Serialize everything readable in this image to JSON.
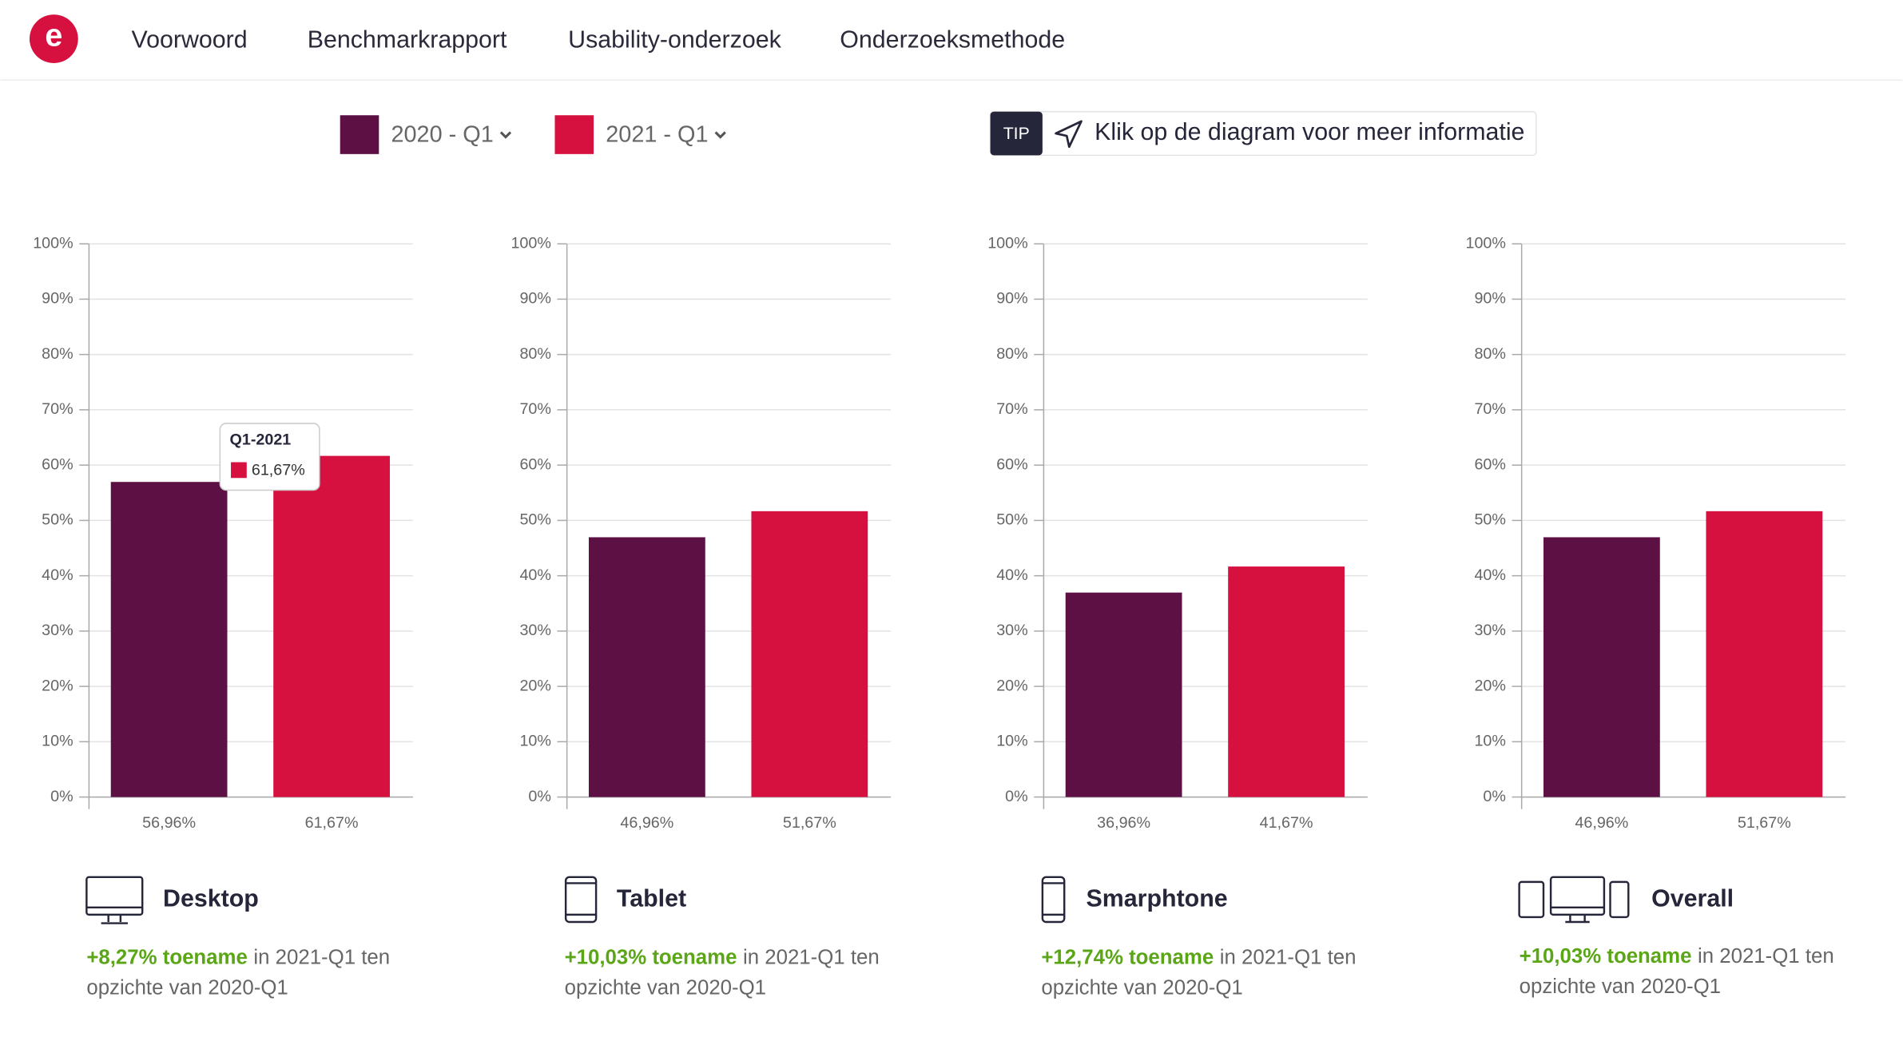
{
  "nav": {
    "items": [
      "Voorwoord",
      "Benchmarkrapport",
      "Usability-onderzoek",
      "Onderzoeksmethode"
    ]
  },
  "legend": [
    {
      "name": "2020 - Q1",
      "color": "#5c1044"
    },
    {
      "name": "2021 - Q1",
      "color": "#d6103f"
    }
  ],
  "tip": {
    "badge": "TIP",
    "text": "Klik op de diagram voor meer informatie"
  },
  "chart_data": [
    {
      "type": "bar",
      "title": "Desktop",
      "values": [
        56.96,
        61.67
      ],
      "value_labels": [
        "56,96%",
        "61,67%"
      ],
      "ylim": [
        0,
        100
      ],
      "yticks": [
        {
          "value": 0,
          "label": "0%"
        },
        {
          "value": 10,
          "label": "10%"
        },
        {
          "value": 20,
          "label": "20%"
        },
        {
          "value": 30,
          "label": "30%"
        },
        {
          "value": 40,
          "label": "40%"
        },
        {
          "value": 50,
          "label": "50%"
        },
        {
          "value": 60,
          "label": "60%"
        },
        {
          "value": 70,
          "label": "70%"
        },
        {
          "value": 80,
          "label": "80%"
        },
        {
          "value": 90,
          "label": "90%"
        },
        {
          "value": 100,
          "label": "100%"
        }
      ],
      "grid": true,
      "change": "+8,27% toename",
      "note": [
        "in 2021-Q1 ten",
        "opzichte van 2020-Q1"
      ],
      "tooltip": {
        "title": "Q1-2021",
        "label": "61,67%"
      }
    },
    {
      "type": "bar",
      "title": "Tablet",
      "values": [
        46.96,
        51.67
      ],
      "value_labels": [
        "46,96%",
        "51,67%"
      ],
      "ylim": [
        0,
        100
      ],
      "yticks": [
        {
          "value": 0,
          "label": "0%"
        },
        {
          "value": 10,
          "label": "10%"
        },
        {
          "value": 20,
          "label": "20%"
        },
        {
          "value": 30,
          "label": "30%"
        },
        {
          "value": 40,
          "label": "40%"
        },
        {
          "value": 50,
          "label": "50%"
        },
        {
          "value": 60,
          "label": "60%"
        },
        {
          "value": 70,
          "label": "70%"
        },
        {
          "value": 80,
          "label": "80%"
        },
        {
          "value": 90,
          "label": "90%"
        },
        {
          "value": 100,
          "label": "100%"
        }
      ],
      "grid": true,
      "change": "+10,03% toename",
      "note": [
        "in 2021-Q1 ten",
        "opzichte van 2020-Q1"
      ]
    },
    {
      "type": "bar",
      "title": "Smarphtone",
      "values": [
        36.96,
        41.67
      ],
      "value_labels": [
        "36,96%",
        "41,67%"
      ],
      "ylim": [
        0,
        100
      ],
      "yticks": [
        {
          "value": 0,
          "label": "0%"
        },
        {
          "value": 10,
          "label": "10%"
        },
        {
          "value": 20,
          "label": "20%"
        },
        {
          "value": 30,
          "label": "30%"
        },
        {
          "value": 40,
          "label": "40%"
        },
        {
          "value": 50,
          "label": "50%"
        },
        {
          "value": 60,
          "label": "60%"
        },
        {
          "value": 70,
          "label": "70%"
        },
        {
          "value": 80,
          "label": "80%"
        },
        {
          "value": 90,
          "label": "90%"
        },
        {
          "value": 100,
          "label": "100%"
        }
      ],
      "grid": true,
      "change": "+12,74% toename",
      "note": [
        "in 2021-Q1 ten",
        "opzichte van 2020-Q1"
      ]
    },
    {
      "type": "bar",
      "title": "Overall",
      "values": [
        46.96,
        51.67
      ],
      "value_labels": [
        "46,96%",
        "51,67%"
      ],
      "ylim": [
        0,
        100
      ],
      "yticks": [
        {
          "value": 0,
          "label": "0%"
        },
        {
          "value": 10,
          "label": "10%"
        },
        {
          "value": 20,
          "label": "20%"
        },
        {
          "value": 30,
          "label": "30%"
        },
        {
          "value": 40,
          "label": "40%"
        },
        {
          "value": 50,
          "label": "50%"
        },
        {
          "value": 60,
          "label": "60%"
        },
        {
          "value": 70,
          "label": "70%"
        },
        {
          "value": 80,
          "label": "80%"
        },
        {
          "value": 90,
          "label": "90%"
        },
        {
          "value": 100,
          "label": "100%"
        }
      ],
      "grid": true,
      "change": "+10,03% toename",
      "note": [
        "in 2021-Q1 ten",
        "opzichte van 2020-Q1"
      ]
    }
  ]
}
